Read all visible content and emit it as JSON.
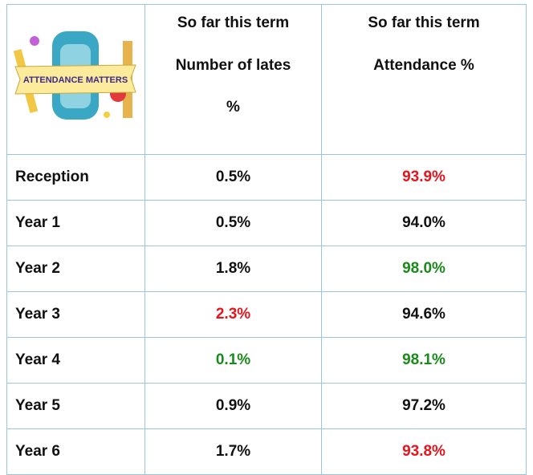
{
  "header": {
    "image_label": "ATTENDANCE MATTERS",
    "columns": [
      {
        "lines": [
          "So far this term",
          "Number of lates",
          "%"
        ]
      },
      {
        "lines": [
          "So far this term",
          "Attendance %"
        ]
      }
    ]
  },
  "colors": {
    "red": "#e8141c",
    "green": "#1a8a1a",
    "normal": "#111111"
  },
  "table": {
    "rows": [
      {
        "label": "Reception",
        "lates": "0.5%",
        "lates_color": "normal",
        "attendance": "93.9%",
        "attendance_color": "red"
      },
      {
        "label": "Year 1",
        "lates": "0.5%",
        "lates_color": "normal",
        "attendance": "94.0%",
        "attendance_color": "normal"
      },
      {
        "label": "Year 2",
        "lates": "1.8%",
        "lates_color": "normal",
        "attendance": "98.0%",
        "attendance_color": "green"
      },
      {
        "label": "Year 3",
        "lates": "2.3%",
        "lates_color": "red",
        "attendance": "94.6%",
        "attendance_color": "normal"
      },
      {
        "label": "Year 4",
        "lates": "0.1%",
        "lates_color": "green",
        "attendance": "98.1%",
        "attendance_color": "green"
      },
      {
        "label": "Year 5",
        "lates": "0.9%",
        "lates_color": "normal",
        "attendance": "97.2%",
        "attendance_color": "normal"
      },
      {
        "label": "Year 6",
        "lates": "1.7%",
        "lates_color": "normal",
        "attendance": "93.8%",
        "attendance_color": "red"
      }
    ]
  }
}
